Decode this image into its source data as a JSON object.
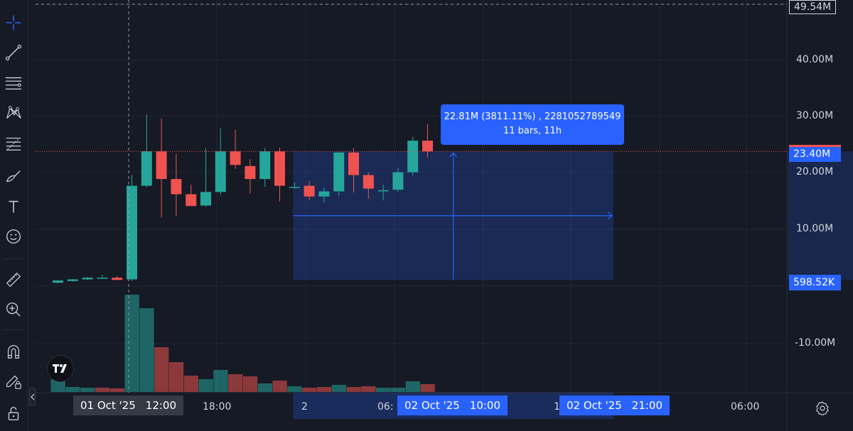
{
  "toolbar": {
    "tools": [
      {
        "name": "crosshair-icon",
        "active": true
      },
      {
        "name": "trend-line-icon"
      },
      {
        "name": "horizontal-lines-icon"
      },
      {
        "name": "pattern-icon"
      },
      {
        "name": "fib-retracement-icon"
      },
      {
        "name": "brush-icon"
      },
      {
        "name": "text-icon"
      },
      {
        "name": "emoji-icon"
      },
      {
        "name": "ruler-icon"
      },
      {
        "name": "zoom-in-icon"
      },
      {
        "name": "magnet-icon"
      },
      {
        "name": "lock-drawing-icon"
      },
      {
        "name": "lock-icon"
      }
    ]
  },
  "price_axis": {
    "labels": [
      "40.00M",
      "30.00M",
      "20.00M",
      "10.00M",
      "-10.00M"
    ],
    "top_badge": "49.54M",
    "last_price_badge": "23.40M",
    "measure_low_badge": "598.52K"
  },
  "time_axis": {
    "labels": [
      "18:00",
      "2",
      "06:",
      "1",
      "06:00"
    ],
    "crosshair_badge": {
      "date": "01 Oct '25",
      "time": "12:00"
    },
    "measure_start_badge": {
      "date": "02 Oct '25",
      "time": "10:00"
    },
    "measure_end_badge": {
      "date": "02 Oct '25",
      "time": "21:00"
    }
  },
  "measure": {
    "line1": "22.81M (3811.11%) , 2281052789549",
    "line2": "11 bars, 11h"
  },
  "colors": {
    "up": "#26a69a",
    "down": "#ef5350",
    "accent": "#2962ff",
    "background": "#161a25"
  },
  "chart_data": {
    "type": "candlestick",
    "units": "M",
    "bars": [
      {
        "o": 0.1,
        "h": 0.6,
        "l": 0.0,
        "c": 0.5
      },
      {
        "o": 0.4,
        "h": 0.8,
        "l": 0.3,
        "c": 0.7
      },
      {
        "o": 0.7,
        "h": 1.1,
        "l": 0.6,
        "c": 1.0
      },
      {
        "o": 1.0,
        "h": 1.5,
        "l": 0.8,
        "c": 1.0
      },
      {
        "o": 1.0,
        "h": 1.3,
        "l": 0.5,
        "c": 0.6
      },
      {
        "o": 0.7,
        "h": 19.2,
        "l": 0.4,
        "c": 17.3
      },
      {
        "o": 17.3,
        "h": 30.0,
        "l": 17.0,
        "c": 23.4
      },
      {
        "o": 23.4,
        "h": 29.2,
        "l": 11.7,
        "c": 18.5
      },
      {
        "o": 18.5,
        "h": 23.0,
        "l": 12.0,
        "c": 15.8
      },
      {
        "o": 15.8,
        "h": 17.5,
        "l": 13.8,
        "c": 13.7
      },
      {
        "o": 13.8,
        "h": 24.0,
        "l": 13.6,
        "c": 16.2
      },
      {
        "o": 16.2,
        "h": 27.5,
        "l": 15.7,
        "c": 23.4
      },
      {
        "o": 23.4,
        "h": 27.2,
        "l": 20.3,
        "c": 21.0
      },
      {
        "o": 20.8,
        "h": 22.0,
        "l": 15.9,
        "c": 18.5
      },
      {
        "o": 18.5,
        "h": 24.0,
        "l": 17.1,
        "c": 23.4
      },
      {
        "o": 23.4,
        "h": 24.1,
        "l": 14.5,
        "c": 17.3
      },
      {
        "o": 17.1,
        "h": 17.9,
        "l": 16.8,
        "c": 17.1
      },
      {
        "o": 17.3,
        "h": 18.2,
        "l": 14.7,
        "c": 15.4
      },
      {
        "o": 15.4,
        "h": 17.0,
        "l": 14.3,
        "c": 16.3
      },
      {
        "o": 16.3,
        "h": 23.4,
        "l": 15.6,
        "c": 23.2
      },
      {
        "o": 23.2,
        "h": 24.0,
        "l": 16.1,
        "c": 19.2
      },
      {
        "o": 19.2,
        "h": 19.7,
        "l": 15.0,
        "c": 16.8
      },
      {
        "o": 16.5,
        "h": 17.5,
        "l": 14.7,
        "c": 16.5
      },
      {
        "o": 16.6,
        "h": 20.5,
        "l": 16.2,
        "c": 19.7
      },
      {
        "o": 19.7,
        "h": 26.0,
        "l": 19.1,
        "c": 25.3
      },
      {
        "o": 25.3,
        "h": 28.2,
        "l": 22.3,
        "c": 23.4
      }
    ],
    "volume": [
      {
        "v": 18,
        "up": true
      },
      {
        "v": 7,
        "up": true
      },
      {
        "v": 6,
        "up": true
      },
      {
        "v": 6,
        "up": false
      },
      {
        "v": 5,
        "up": false
      },
      {
        "v": 137,
        "up": true
      },
      {
        "v": 118,
        "up": true
      },
      {
        "v": 63,
        "up": false
      },
      {
        "v": 42,
        "up": false
      },
      {
        "v": 23,
        "up": false
      },
      {
        "v": 18,
        "up": true
      },
      {
        "v": 31,
        "up": true
      },
      {
        "v": 25,
        "up": false
      },
      {
        "v": 22,
        "up": false
      },
      {
        "v": 12,
        "up": true
      },
      {
        "v": 16,
        "up": false
      },
      {
        "v": 8,
        "up": true
      },
      {
        "v": 6,
        "up": false
      },
      {
        "v": 7,
        "up": false
      },
      {
        "v": 10,
        "up": true
      },
      {
        "v": 7,
        "up": false
      },
      {
        "v": 8,
        "up": false
      },
      {
        "v": 6,
        "up": true
      },
      {
        "v": 6,
        "up": true
      },
      {
        "v": 15,
        "up": true
      },
      {
        "v": 11,
        "up": false
      }
    ],
    "last_price": 23.4,
    "measure_range": {
      "from_price": 0.59852,
      "to_price": 23.4,
      "bars": 11
    }
  }
}
